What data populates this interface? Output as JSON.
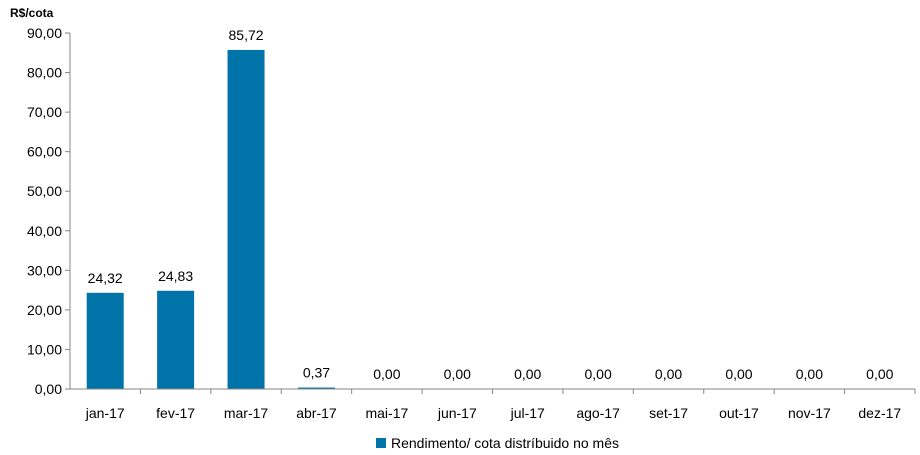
{
  "chart_data": {
    "type": "bar",
    "ylabel": "R$/cota",
    "categories": [
      "jan-17",
      "fev-17",
      "mar-17",
      "abr-17",
      "mai-17",
      "jun-17",
      "jul-17",
      "ago-17",
      "set-17",
      "out-17",
      "nov-17",
      "dez-17"
    ],
    "series": [
      {
        "name": "Rendimento/ cota distríbuido no mês",
        "values": [
          24.32,
          24.83,
          85.72,
          0.37,
          0.0,
          0.0,
          0.0,
          0.0,
          0.0,
          0.0,
          0.0,
          0.0
        ],
        "labels": [
          "24,32",
          "24,83",
          "85,72",
          "0,37",
          "0,00",
          "0,00",
          "0,00",
          "0,00",
          "0,00",
          "0,00",
          "0,00",
          "0,00"
        ],
        "color": "#0073A8"
      }
    ],
    "ylim": [
      0,
      90
    ],
    "yticks": [
      0,
      10,
      20,
      30,
      40,
      50,
      60,
      70,
      80,
      90
    ],
    "ytick_labels": [
      "0,00",
      "10,00",
      "20,00",
      "30,00",
      "40,00",
      "50,00",
      "60,00",
      "70,00",
      "80,00",
      "90,00"
    ],
    "grid": false,
    "legend_position": "bottom-center"
  }
}
